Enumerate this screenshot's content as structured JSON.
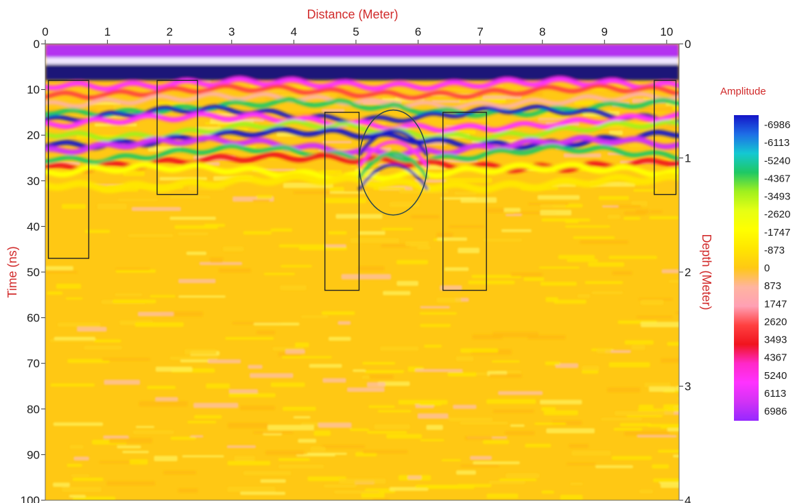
{
  "chart_data": {
    "type": "heatmap",
    "title": "",
    "xlabel": "Distance (Meter)",
    "ylabel": "Time (ns)",
    "y2label": "Depth (Meter)",
    "xlim": [
      0,
      10.2
    ],
    "ylim": [
      0,
      100
    ],
    "y2lim": [
      0,
      4
    ],
    "x_ticks": [
      "0",
      "1",
      "2",
      "3",
      "4",
      "5",
      "6",
      "7",
      "8",
      "9",
      "10"
    ],
    "y_ticks": [
      "0",
      "10",
      "20",
      "30",
      "40",
      "50",
      "60",
      "70",
      "80",
      "90",
      "100"
    ],
    "y2_ticks": [
      "0",
      "1",
      "2",
      "3",
      "4"
    ],
    "y_reversed": true,
    "grid": false,
    "legend": {
      "title": "Amplitude",
      "placement": "right",
      "labels": [
        "-6986",
        "-6113",
        "-5240",
        "-4367",
        "-3493",
        "-2620",
        "-1747",
        "-873",
        "0",
        "873",
        "1747",
        "2620",
        "3493",
        "4367",
        "5240",
        "6113",
        "6986"
      ],
      "colors": [
        "#1414c8",
        "#1e6ee6",
        "#14c8d2",
        "#1ec864",
        "#a0f01e",
        "#e6ff14",
        "#ffff00",
        "#ffe600",
        "#ffc814",
        "#ffb4a0",
        "#ffa0b4",
        "#ff4040",
        "#f0141e",
        "#ff28c8",
        "#ff32ff",
        "#d232f5",
        "#9628ff"
      ]
    },
    "annotations": [
      {
        "shape": "rectangle",
        "x": [
          0.05,
          0.7
        ],
        "y": [
          8,
          47
        ]
      },
      {
        "shape": "rectangle",
        "x": [
          1.8,
          2.45
        ],
        "y": [
          8,
          33
        ]
      },
      {
        "shape": "rectangle",
        "x": [
          4.5,
          5.05
        ],
        "y": [
          15,
          54
        ]
      },
      {
        "shape": "rectangle",
        "x": [
          6.4,
          7.1
        ],
        "y": [
          15,
          54
        ]
      },
      {
        "shape": "rectangle",
        "x": [
          9.8,
          10.15
        ],
        "y": [
          8,
          33
        ]
      },
      {
        "shape": "ellipse",
        "cx": 5.6,
        "cy": 26,
        "rx": 0.55,
        "ry": 11.5
      }
    ]
  }
}
